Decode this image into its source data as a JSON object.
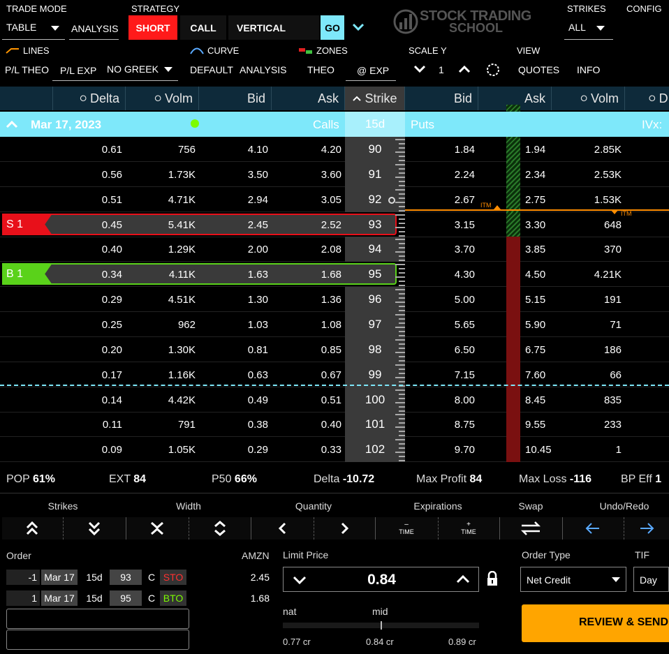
{
  "toolbar": {
    "trade_mode_label": "TRADE MODE",
    "trade_mode_value": "TABLE",
    "analysis": "ANALYSIS",
    "strategy_label": "STRATEGY",
    "short": "SHORT",
    "call": "CALL",
    "vertical": "VERTICAL",
    "go": "GO",
    "logo_line1": "STOCK TRADING",
    "logo_line2": "SCHOOL",
    "strikes_label": "STRIKES",
    "strikes_value": "ALL",
    "config": "CONFIG",
    "lines": "LINES",
    "curve": "CURVE",
    "zones": "ZONES",
    "scale_y": "SCALE Y",
    "view": "VIEW",
    "pl_theo": "P/L THEO",
    "pl_exp": "P/L EXP",
    "no_greek": "NO GREEK",
    "default": "DEFAULT",
    "analysis2": "ANALYSIS",
    "theo": "THEO",
    "at_exp": "@ EXP",
    "scale_value": "1",
    "quotes": "QUOTES",
    "info": "INFO"
  },
  "headers": {
    "delta": "Delta",
    "volm": "Volm",
    "bid": "Bid",
    "ask": "Ask",
    "strike": "Strike",
    "put_bid": "Bid",
    "put_ask": "Ask",
    "put_volm": "Volm",
    "put_delta": "D"
  },
  "expiry": {
    "date": "Mar 17, 2023",
    "calls": "Calls",
    "days": "15d",
    "puts": "Puts",
    "ivx": "IVx:"
  },
  "rows": [
    {
      "delta": "0.61",
      "volm": "756",
      "bid": "4.10",
      "ask": "4.20",
      "strike": "90",
      "pbid": "1.84",
      "pask": "1.94",
      "pvolm": "2.85K"
    },
    {
      "delta": "0.56",
      "volm": "1.73K",
      "bid": "3.50",
      "ask": "3.60",
      "strike": "91",
      "pbid": "2.24",
      "pask": "2.34",
      "pvolm": "2.53K"
    },
    {
      "delta": "0.51",
      "volm": "4.71K",
      "bid": "2.94",
      "ask": "3.05",
      "strike": "92",
      "pbid": "2.67",
      "pask": "2.75",
      "pvolm": "1.53K"
    },
    {
      "delta": "0.45",
      "volm": "5.41K",
      "bid": "2.45",
      "ask": "2.52",
      "strike": "93",
      "pbid": "3.15",
      "pask": "3.30",
      "pvolm": "648",
      "leg": "S 1"
    },
    {
      "delta": "0.40",
      "volm": "1.29K",
      "bid": "2.00",
      "ask": "2.08",
      "strike": "94",
      "pbid": "3.70",
      "pask": "3.85",
      "pvolm": "370"
    },
    {
      "delta": "0.34",
      "volm": "4.11K",
      "bid": "1.63",
      "ask": "1.68",
      "strike": "95",
      "pbid": "4.30",
      "pask": "4.50",
      "pvolm": "4.21K",
      "leg": "B 1"
    },
    {
      "delta": "0.29",
      "volm": "4.51K",
      "bid": "1.30",
      "ask": "1.36",
      "strike": "96",
      "pbid": "5.00",
      "pask": "5.15",
      "pvolm": "191"
    },
    {
      "delta": "0.25",
      "volm": "962",
      "bid": "1.03",
      "ask": "1.08",
      "strike": "97",
      "pbid": "5.65",
      "pask": "5.90",
      "pvolm": "71"
    },
    {
      "delta": "0.20",
      "volm": "1.30K",
      "bid": "0.81",
      "ask": "0.85",
      "strike": "98",
      "pbid": "6.50",
      "pask": "6.75",
      "pvolm": "186"
    },
    {
      "delta": "0.17",
      "volm": "1.16K",
      "bid": "0.63",
      "ask": "0.67",
      "strike": "99",
      "pbid": "7.15",
      "pask": "7.60",
      "pvolm": "66"
    },
    {
      "delta": "0.14",
      "volm": "4.42K",
      "bid": "0.49",
      "ask": "0.51",
      "strike": "100",
      "pbid": "8.00",
      "pask": "8.45",
      "pvolm": "835"
    },
    {
      "delta": "0.11",
      "volm": "791",
      "bid": "0.38",
      "ask": "0.40",
      "strike": "101",
      "pbid": "8.75",
      "pask": "9.55",
      "pvolm": "233"
    },
    {
      "delta": "0.09",
      "volm": "1.05K",
      "bid": "0.29",
      "ask": "0.33",
      "strike": "102",
      "pbid": "9.70",
      "pask": "10.45",
      "pvolm": "1"
    }
  ],
  "itm_label": "ITM",
  "stats": {
    "pop_label": "POP",
    "pop": "61%",
    "ext_label": "EXT",
    "ext": "84",
    "p50_label": "P50",
    "p50": "66%",
    "delta_label": "Delta",
    "delta": "-10.72",
    "maxprofit_label": "Max Profit",
    "maxprofit": "84",
    "maxloss_label": "Max Loss",
    "maxloss": "-116",
    "bpeff_label": "BP Eff",
    "bpeff": "1"
  },
  "controls": {
    "strikes": "Strikes",
    "width": "Width",
    "quantity": "Quantity",
    "expirations": "Expirations",
    "swap": "Swap",
    "undo_redo": "Undo/Redo",
    "time_minus": "TIME",
    "time_plus": "TIME"
  },
  "order": {
    "label": "Order",
    "symbol": "AMZN",
    "legs": [
      {
        "qty": "-1",
        "date": "Mar 17",
        "days": "15d",
        "strike": "93",
        "type": "C",
        "action": "STO",
        "price": "2.45"
      },
      {
        "qty": "1",
        "date": "Mar 17",
        "days": "15d",
        "strike": "95",
        "type": "C",
        "action": "BTO",
        "price": "1.68"
      }
    ],
    "limit_price_label": "Limit Price",
    "limit_price": "0.84",
    "nat": "nat",
    "mid": "mid",
    "nat_value": "0.77 cr",
    "mid_value": "0.84 cr",
    "far_value": "0.89 cr",
    "order_type_label": "Order Type",
    "order_type": "Net Credit",
    "tif_label": "TIF",
    "tif": "Day",
    "review": "REVIEW & SEND"
  },
  "colors": {
    "accent_cyan": "#7ee8fa",
    "short_red": "#ff1a1a",
    "buy_green": "#7cfc00",
    "review_orange": "#ffa500"
  }
}
